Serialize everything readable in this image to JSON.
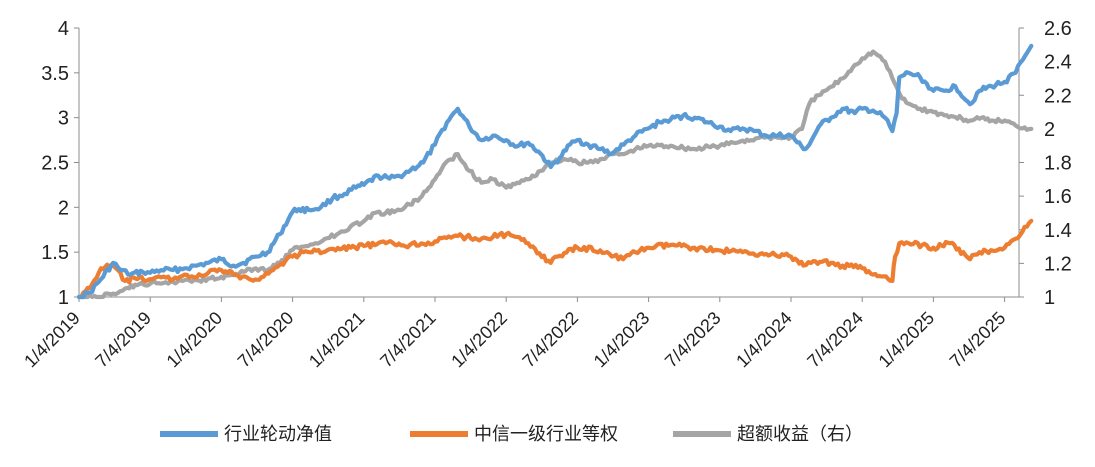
{
  "chart_data": {
    "type": "line",
    "title": "",
    "xlabel": "",
    "ylabel": "",
    "x_tick_labels": [
      "1/4/2019",
      "7/4/2019",
      "1/4/2020",
      "7/4/2020",
      "1/4/2021",
      "7/4/2021",
      "1/4/2022",
      "7/4/2022",
      "1/4/2023",
      "7/4/2023",
      "1/4/2024",
      "7/4/2024",
      "1/4/2025",
      "7/4/2025"
    ],
    "y_left": {
      "ylim": [
        1,
        4
      ],
      "ticks": [
        "1",
        "1.5",
        "2",
        "2.5",
        "3",
        "3.5",
        "4"
      ]
    },
    "y_right": {
      "ylim": [
        1,
        2.6
      ],
      "ticks": [
        "1",
        "1.2",
        "1.4",
        "1.6",
        "1.8",
        "2",
        "2.2",
        "2.4",
        "2.6"
      ]
    },
    "legend_position": "bottom",
    "grid": false,
    "series": [
      {
        "name": "行业轮动净值",
        "axis": "left",
        "color": "#5B9BD5",
        "x": [
          "2019-01-04",
          "2019-02-01",
          "2019-03-01",
          "2019-04-01",
          "2019-04-20",
          "2019-05-15",
          "2019-06-15",
          "2019-07-04",
          "2019-08-01",
          "2019-09-01",
          "2019-10-01",
          "2019-11-01",
          "2019-12-01",
          "2020-01-04",
          "2020-02-04",
          "2020-03-01",
          "2020-04-01",
          "2020-05-01",
          "2020-06-01",
          "2020-07-04",
          "2020-07-20",
          "2020-08-15",
          "2020-09-15",
          "2020-10-15",
          "2020-11-15",
          "2020-12-15",
          "2021-01-04",
          "2021-02-10",
          "2021-03-10",
          "2021-04-04",
          "2021-05-04",
          "2021-06-04",
          "2021-07-04",
          "2021-08-04",
          "2021-09-01",
          "2021-10-01",
          "2021-11-01",
          "2021-12-01",
          "2022-01-04",
          "2022-02-01",
          "2022-03-01",
          "2022-04-01",
          "2022-04-27",
          "2022-05-20",
          "2022-06-15",
          "2022-07-04",
          "2022-08-01",
          "2022-09-01",
          "2022-10-01",
          "2022-11-01",
          "2022-12-01",
          "2023-01-04",
          "2023-02-01",
          "2023-03-01",
          "2023-04-01",
          "2023-05-01",
          "2023-06-01",
          "2023-07-04",
          "2023-08-01",
          "2023-09-01",
          "2023-10-01",
          "2023-11-01",
          "2023-12-01",
          "2024-01-04",
          "2024-02-05",
          "2024-02-20",
          "2024-03-15",
          "2024-04-15",
          "2024-05-15",
          "2024-06-15",
          "2024-07-04",
          "2024-08-01",
          "2024-09-01",
          "2024-09-20",
          "2024-10-01",
          "2024-10-08",
          "2024-11-01",
          "2024-12-01",
          "2025-01-04",
          "2025-02-01",
          "2025-03-01",
          "2025-04-07",
          "2025-05-01",
          "2025-06-01",
          "2025-07-04",
          "2025-08-01",
          "2025-08-20",
          "2025-09-10"
        ],
        "values": [
          1.0,
          1.05,
          1.2,
          1.38,
          1.3,
          1.25,
          1.28,
          1.27,
          1.3,
          1.3,
          1.32,
          1.35,
          1.38,
          1.42,
          1.35,
          1.38,
          1.45,
          1.5,
          1.7,
          1.95,
          1.98,
          1.97,
          2.0,
          2.1,
          2.15,
          2.22,
          2.25,
          2.35,
          2.32,
          2.35,
          2.42,
          2.5,
          2.7,
          2.95,
          3.1,
          2.9,
          2.75,
          2.8,
          2.75,
          2.68,
          2.72,
          2.6,
          2.45,
          2.55,
          2.7,
          2.75,
          2.7,
          2.65,
          2.6,
          2.7,
          2.8,
          2.88,
          2.95,
          2.98,
          3.02,
          3.0,
          2.95,
          2.9,
          2.85,
          2.88,
          2.85,
          2.8,
          2.8,
          2.8,
          2.65,
          2.7,
          2.9,
          3.0,
          3.1,
          3.05,
          3.1,
          3.08,
          3.0,
          2.85,
          3.05,
          3.45,
          3.5,
          3.45,
          3.3,
          3.3,
          3.35,
          3.15,
          3.3,
          3.35,
          3.4,
          3.5,
          3.65,
          3.8
        ]
      },
      {
        "name": "中信一级行业等权",
        "axis": "left",
        "color": "#ED7D31",
        "x": [
          "2019-01-04",
          "2019-02-01",
          "2019-03-01",
          "2019-04-01",
          "2019-05-01",
          "2019-06-01",
          "2019-07-04",
          "2019-08-01",
          "2019-09-01",
          "2019-10-01",
          "2019-11-01",
          "2019-12-01",
          "2020-01-04",
          "2020-02-04",
          "2020-03-15",
          "2020-04-15",
          "2020-05-15",
          "2020-06-15",
          "2020-07-04",
          "2020-08-01",
          "2020-10-01",
          "2020-12-01",
          "2021-01-04",
          "2021-03-01",
          "2021-05-01",
          "2021-07-04",
          "2021-09-01",
          "2021-11-01",
          "2022-01-04",
          "2022-03-01",
          "2022-04-27",
          "2022-05-15",
          "2022-07-04",
          "2022-09-01",
          "2022-10-30",
          "2022-12-01",
          "2023-01-04",
          "2023-03-01",
          "2023-05-01",
          "2023-07-04",
          "2023-09-01",
          "2023-11-01",
          "2024-01-04",
          "2024-02-05",
          "2024-03-01",
          "2024-04-15",
          "2024-05-15",
          "2024-07-04",
          "2024-08-01",
          "2024-09-20",
          "2024-09-27",
          "2024-10-08",
          "2024-11-01",
          "2025-01-04",
          "2025-02-15",
          "2025-04-07",
          "2025-05-01",
          "2025-07-04",
          "2025-08-01",
          "2025-09-10"
        ],
        "values": [
          1.0,
          1.1,
          1.32,
          1.35,
          1.18,
          1.2,
          1.2,
          1.22,
          1.2,
          1.25,
          1.22,
          1.27,
          1.3,
          1.25,
          1.2,
          1.22,
          1.3,
          1.4,
          1.45,
          1.5,
          1.52,
          1.55,
          1.57,
          1.6,
          1.58,
          1.62,
          1.68,
          1.65,
          1.7,
          1.6,
          1.38,
          1.45,
          1.55,
          1.52,
          1.42,
          1.5,
          1.55,
          1.58,
          1.55,
          1.52,
          1.5,
          1.48,
          1.45,
          1.35,
          1.4,
          1.38,
          1.35,
          1.32,
          1.25,
          1.18,
          1.45,
          1.6,
          1.6,
          1.55,
          1.6,
          1.42,
          1.5,
          1.55,
          1.65,
          1.85
        ]
      },
      {
        "name": "超额收益（右）",
        "axis": "right",
        "color": "#A5A5A5",
        "x": [
          "2019-01-04",
          "2019-03-01",
          "2019-04-01",
          "2019-05-01",
          "2019-06-01",
          "2019-07-04",
          "2019-08-01",
          "2019-09-01",
          "2019-10-01",
          "2019-11-01",
          "2019-12-01",
          "2020-01-04",
          "2020-02-04",
          "2020-03-01",
          "2020-04-01",
          "2020-05-01",
          "2020-06-01",
          "2020-07-04",
          "2020-08-01",
          "2020-09-01",
          "2020-10-01",
          "2020-11-01",
          "2020-12-01",
          "2021-01-04",
          "2021-02-01",
          "2021-03-01",
          "2021-04-01",
          "2021-05-01",
          "2021-06-01",
          "2021-07-04",
          "2021-08-01",
          "2021-09-01",
          "2021-10-01",
          "2021-11-01",
          "2021-12-01",
          "2022-01-04",
          "2022-02-01",
          "2022-03-01",
          "2022-04-01",
          "2022-05-01",
          "2022-06-01",
          "2022-07-04",
          "2022-08-01",
          "2022-09-01",
          "2022-10-01",
          "2022-11-01",
          "2022-12-01",
          "2023-01-04",
          "2023-03-01",
          "2023-05-01",
          "2023-07-04",
          "2023-09-01",
          "2023-11-01",
          "2024-01-04",
          "2024-02-01",
          "2024-02-20",
          "2024-03-15",
          "2024-04-15",
          "2024-05-15",
          "2024-06-15",
          "2024-07-04",
          "2024-08-01",
          "2024-09-01",
          "2024-09-20",
          "2024-10-01",
          "2024-10-15",
          "2024-11-01",
          "2024-12-01",
          "2025-01-04",
          "2025-02-01",
          "2025-03-01",
          "2025-04-07",
          "2025-05-01",
          "2025-06-01",
          "2025-07-04",
          "2025-08-01",
          "2025-09-10"
        ],
        "values": [
          1.0,
          1.0,
          1.02,
          1.05,
          1.07,
          1.08,
          1.08,
          1.09,
          1.1,
          1.1,
          1.11,
          1.12,
          1.13,
          1.15,
          1.17,
          1.16,
          1.2,
          1.28,
          1.3,
          1.32,
          1.35,
          1.38,
          1.42,
          1.45,
          1.5,
          1.5,
          1.52,
          1.55,
          1.6,
          1.7,
          1.8,
          1.85,
          1.75,
          1.68,
          1.7,
          1.65,
          1.68,
          1.7,
          1.75,
          1.8,
          1.82,
          1.8,
          1.8,
          1.82,
          1.85,
          1.85,
          1.88,
          1.9,
          1.9,
          1.88,
          1.9,
          1.93,
          1.95,
          1.95,
          2.0,
          2.15,
          2.2,
          2.25,
          2.3,
          2.38,
          2.42,
          2.46,
          2.4,
          2.3,
          2.25,
          2.18,
          2.15,
          2.12,
          2.1,
          2.08,
          2.07,
          2.05,
          2.06,
          2.05,
          2.05,
          2.02,
          2.0
        ]
      }
    ]
  }
}
